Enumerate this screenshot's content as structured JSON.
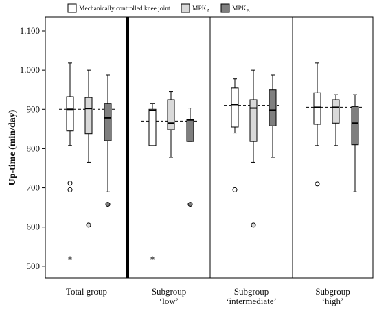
{
  "chart_data": {
    "type": "box",
    "title": "",
    "xlabel": "",
    "ylabel": "Up-time (min/day)",
    "ylim": [
      470,
      1135
    ],
    "yticks": [
      500,
      600,
      700,
      800,
      900,
      1000,
      1100
    ],
    "ytick_labels": [
      "500",
      "600",
      "700",
      "800",
      "900",
      "1.000",
      "1.100"
    ],
    "legend_position": "top",
    "legend": [
      {
        "key": "mech",
        "label": "Mechanically controlled knee joint",
        "sub": "",
        "color": "#ffffff"
      },
      {
        "key": "mpka",
        "label": "MPK",
        "sub": "A",
        "color": "#d9d9d9"
      },
      {
        "key": "mpkb",
        "label": "MPK",
        "sub": "B",
        "color": "#7f7f7f"
      }
    ],
    "groups": [
      {
        "label_lines": [
          "Total group"
        ],
        "reference_line": 900,
        "boxes": [
          {
            "series": "mech",
            "whisker_low": 808,
            "q1": 845,
            "median": 900,
            "q3": 932,
            "whisker_high": 1018,
            "outliers": [
              712,
              695
            ],
            "extremes": [
              520
            ]
          },
          {
            "series": "mpka",
            "whisker_low": 765,
            "q1": 838,
            "median": 902,
            "q3": 930,
            "whisker_high": 1000,
            "outliers": [
              605
            ],
            "extremes": []
          },
          {
            "series": "mpkb",
            "whisker_low": 690,
            "q1": 820,
            "median": 878,
            "q3": 915,
            "whisker_high": 988,
            "outliers": [
              658
            ],
            "extremes": []
          }
        ]
      },
      {
        "label_lines": [
          "Subgroup",
          "‘low’"
        ],
        "reference_line": 870,
        "boxes": [
          {
            "series": "mech",
            "whisker_low": 808,
            "q1": 808,
            "median": 897,
            "q3": 900,
            "whisker_high": 915,
            "outliers": [],
            "extremes": [
              520
            ]
          },
          {
            "series": "mpka",
            "whisker_low": 778,
            "q1": 848,
            "median": 865,
            "q3": 925,
            "whisker_high": 945,
            "outliers": [],
            "extremes": []
          },
          {
            "series": "mpkb",
            "whisker_low": 818,
            "q1": 818,
            "median": 873,
            "q3": 875,
            "whisker_high": 903,
            "outliers": [
              658
            ],
            "extremes": []
          }
        ]
      },
      {
        "label_lines": [
          "Subgroup",
          "‘intermediate’"
        ],
        "reference_line": 910,
        "boxes": [
          {
            "series": "mech",
            "whisker_low": 840,
            "q1": 855,
            "median": 912,
            "q3": 955,
            "whisker_high": 978,
            "outliers": [
              695
            ],
            "extremes": []
          },
          {
            "series": "mpka",
            "whisker_low": 765,
            "q1": 818,
            "median": 903,
            "q3": 925,
            "whisker_high": 1000,
            "outliers": [
              605
            ],
            "extremes": []
          },
          {
            "series": "mpkb",
            "whisker_low": 778,
            "q1": 858,
            "median": 898,
            "q3": 950,
            "whisker_high": 988,
            "outliers": [],
            "extremes": []
          }
        ]
      },
      {
        "label_lines": [
          "Subgroup",
          "‘high’"
        ],
        "reference_line": 905,
        "boxes": [
          {
            "series": "mech",
            "whisker_low": 808,
            "q1": 862,
            "median": 905,
            "q3": 942,
            "whisker_high": 1018,
            "outliers": [
              710
            ],
            "extremes": []
          },
          {
            "series": "mpka",
            "whisker_low": 808,
            "q1": 865,
            "median": 905,
            "q3": 925,
            "whisker_high": 937,
            "outliers": [],
            "extremes": []
          },
          {
            "series": "mpkb",
            "whisker_low": 690,
            "q1": 810,
            "median": 865,
            "q3": 907,
            "whisker_high": 937,
            "outliers": [],
            "extremes": []
          }
        ]
      }
    ]
  }
}
